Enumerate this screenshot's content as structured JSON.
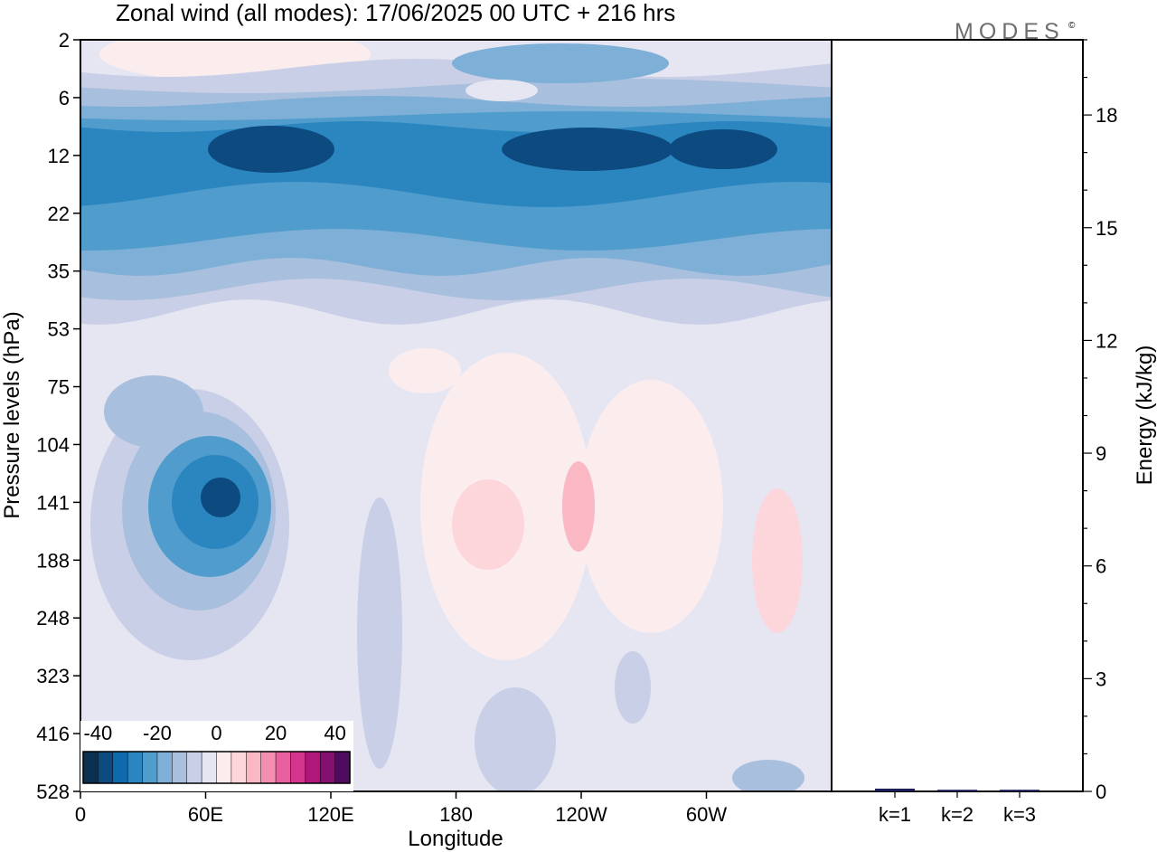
{
  "title": "Zonal wind (all modes):  17/06/2025  00 UTC  + 216 hrs",
  "logo": "MODES",
  "logo_mark": "©",
  "chart_data": [
    {
      "type": "heatmap",
      "title": "Zonal wind (all modes):  17/06/2025  00 UTC  + 216 hrs",
      "xlabel": "Longitude",
      "ylabel": "Pressure levels (hPa)",
      "x_ticks": [
        "0",
        "60E",
        "120E",
        "180",
        "120W",
        "60W"
      ],
      "x_tick_degrees": [
        0,
        60,
        120,
        180,
        240,
        300
      ],
      "xlim": [
        0,
        360
      ],
      "y_ticks": [
        "2",
        "6",
        "12",
        "22",
        "35",
        "53",
        "75",
        "104",
        "141",
        "188",
        "248",
        "323",
        "416",
        "528"
      ],
      "y_axis": "pressure levels, top 2 hPa, bottom 528 hPa",
      "colorbar": {
        "ticks": [
          "-40",
          "-20",
          "0",
          "20",
          "40"
        ],
        "range": [
          -45,
          45
        ],
        "bins": 18,
        "colors": [
          "#0b2f4e",
          "#0c4a80",
          "#0e6aab",
          "#2b86c0",
          "#4f9ccd",
          "#7eafd6",
          "#a9bfde",
          "#c9cfe6",
          "#e6e6f2",
          "#fbecee",
          "#fcd6da",
          "#f9b8c4",
          "#f38fb0",
          "#e8609e",
          "#d3358c",
          "#b0177a",
          "#851070",
          "#4f0b62"
        ]
      },
      "features": [
        {
          "name": "upper-stratosphere easterlies",
          "levels_hPa": [
            8,
            30
          ],
          "longitudes": [
            0,
            360
          ],
          "min_value": -35
        },
        {
          "name": "eastern-hemisphere easterly jet core",
          "center_lon": 68,
          "center_hPa": 141,
          "min_value": -35
        },
        {
          "name": "tropical westerlies",
          "longitudes": [
            175,
            250
          ],
          "levels_hPa": [
            90,
            300
          ],
          "max_value": 10
        }
      ]
    },
    {
      "type": "bar",
      "title": "",
      "categories": [
        "k=1",
        "k=2",
        "k=3"
      ],
      "values": [
        0.05,
        0.02,
        0.02
      ],
      "ylabel": "Energy (kJ/kg)",
      "ylim": [
        0,
        20
      ],
      "y_ticks": [
        0,
        3,
        6,
        9,
        12,
        15,
        18
      ],
      "color": "#1c1c5a"
    }
  ]
}
